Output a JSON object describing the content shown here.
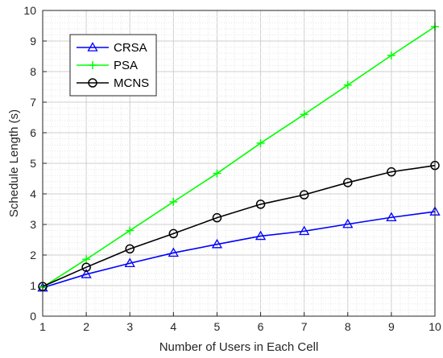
{
  "chart_data": {
    "type": "line",
    "title": "",
    "xlabel": "Number of Users in Each Cell",
    "ylabel": "Schedule Length (s)",
    "x": [
      1,
      2,
      3,
      4,
      5,
      6,
      7,
      8,
      9,
      10
    ],
    "xlim": [
      1,
      10
    ],
    "ylim": [
      0,
      10
    ],
    "xticks": [
      "1",
      "2",
      "3",
      "4",
      "5",
      "6",
      "7",
      "8",
      "9",
      "10"
    ],
    "yticks": [
      "0",
      "1",
      "2",
      "3",
      "4",
      "5",
      "6",
      "7",
      "8",
      "9",
      "10"
    ],
    "grid": true,
    "legend_position": "top-left",
    "series": [
      {
        "name": "CRSA",
        "color": "#0000ff",
        "marker": "triangle",
        "values": [
          0.93,
          1.37,
          1.73,
          2.07,
          2.35,
          2.62,
          2.78,
          3.01,
          3.23,
          3.42
        ]
      },
      {
        "name": "PSA",
        "color": "#00ff00",
        "marker": "plus",
        "values": [
          0.95,
          1.86,
          2.8,
          3.74,
          4.67,
          5.66,
          6.6,
          7.56,
          8.53,
          9.47
        ]
      },
      {
        "name": "MCNS",
        "color": "#000000",
        "marker": "circle",
        "values": [
          0.97,
          1.6,
          2.2,
          2.7,
          3.22,
          3.66,
          3.97,
          4.37,
          4.72,
          4.93
        ]
      }
    ]
  }
}
